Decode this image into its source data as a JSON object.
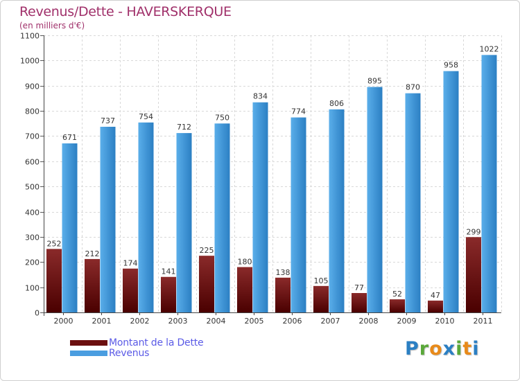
{
  "header": {
    "title": "Revenus/Dette - HAVERSKERQUE",
    "subtitle": "(en milliers d'€)"
  },
  "colors": {
    "debt_top": "#8a2a2a",
    "debt_bottom": "#4a0000",
    "revenue_top": "#5aaeea",
    "revenue_bottom": "#2b7fc3",
    "title": "#a0306a",
    "legend_text": "#5a5ae6"
  },
  "chart_data": {
    "type": "bar",
    "title": "Revenus/Dette - HAVERSKERQUE",
    "ylabel": "(en milliers d'€)",
    "xlabel": "",
    "categories": [
      "2000",
      "2001",
      "2002",
      "2003",
      "2004",
      "2005",
      "2006",
      "2007",
      "2008",
      "2009",
      "2010",
      "2011"
    ],
    "series": [
      {
        "name": "Montant de la Dette",
        "values": [
          252,
          212,
          174,
          141,
          225,
          180,
          138,
          105,
          77,
          52,
          47,
          299
        ]
      },
      {
        "name": "Revenus",
        "values": [
          671,
          737,
          754,
          712,
          750,
          834,
          774,
          806,
          895,
          870,
          958,
          1022
        ]
      }
    ],
    "ylim": [
      0,
      1100
    ],
    "yticks": [
      0,
      100,
      200,
      300,
      400,
      500,
      600,
      700,
      800,
      900,
      1000,
      1100
    ],
    "grid": true,
    "legend": "bottom-left"
  },
  "legend": {
    "items": [
      {
        "label": "Montant de la Dette",
        "color": "#6b0f0f"
      },
      {
        "label": "Revenus",
        "color": "#4a9de0"
      }
    ]
  },
  "logo": {
    "letters": [
      "P",
      "r",
      "o",
      "x",
      "i",
      "t",
      "i"
    ],
    "colors": [
      "#2b7fc3",
      "#5aa83a",
      "#e88a1a",
      "#2b7fc3",
      "#5aa83a",
      "#e88a1a",
      "#2b7fc3"
    ]
  }
}
